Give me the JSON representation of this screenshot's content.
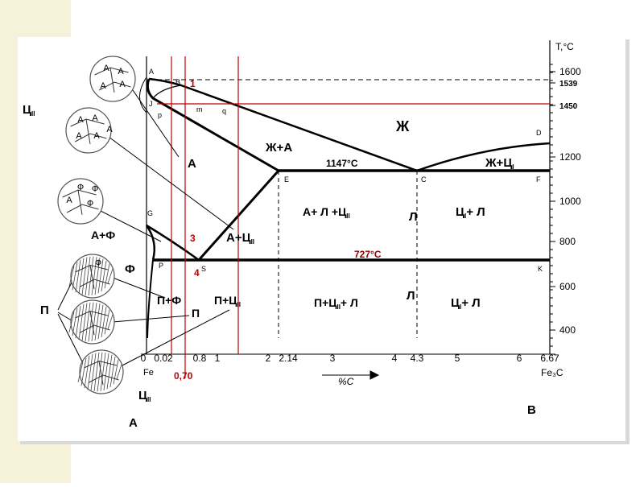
{
  "axis": {
    "temp_label": "T,°C",
    "temp_ticks": [
      "1600",
      "1539",
      "1450",
      "1200",
      "1000",
      "800",
      "600",
      "400"
    ],
    "c_ticks": [
      "0",
      "0.02",
      "0.8",
      "1",
      "2",
      "2.14",
      "3",
      "4",
      "4.3",
      "5",
      "6",
      "6.67"
    ],
    "x_label": "%C",
    "fe": "Fe",
    "fe3c": "Fe₃C",
    "corner_left": "А",
    "corner_right": "В"
  },
  "points": [
    "A",
    "B",
    "J",
    "p",
    "m",
    "q",
    "G",
    "P",
    "S",
    "E",
    "C",
    "D",
    "F",
    "K"
  ],
  "red_labels": [
    "1",
    "3",
    "4",
    "0,70"
  ],
  "phases": [
    {
      "main": "Ж"
    },
    {
      "main": "Ж+А"
    },
    {
      "main": "1147°C"
    },
    {
      "main": "Ж+Ц",
      "sub": "I"
    },
    {
      "main": "А"
    },
    {
      "main": "А+ Л +Ц",
      "sub": "II"
    },
    {
      "main": "Л"
    },
    {
      "main": "Ц",
      "sub": "I",
      "tail": "+ Л"
    },
    {
      "main": "А+Ф"
    },
    {
      "main": "А+Ц",
      "sub": "II"
    },
    {
      "main": "727°C"
    },
    {
      "main": "Ф"
    },
    {
      "main": "П+Ф"
    },
    {
      "main": "П+Ц",
      "sub": "II"
    },
    {
      "main": "П"
    },
    {
      "main": "П+Ц",
      "sub": "II",
      "tail": "+ Л"
    },
    {
      "main": "Л"
    },
    {
      "main": "Ц",
      "sub": "I",
      "tail": "+ Л"
    },
    {
      "main": "П"
    },
    {
      "main": "Ц",
      "sub": "II"
    },
    {
      "main": "Ц",
      "sub": "II"
    }
  ],
  "micro_labels": [
    "А",
    "А",
    "А",
    "А",
    "А",
    "А",
    "А",
    "А",
    "А",
    "Ф",
    "Ф",
    "А",
    "Ф",
    "Ф"
  ]
}
